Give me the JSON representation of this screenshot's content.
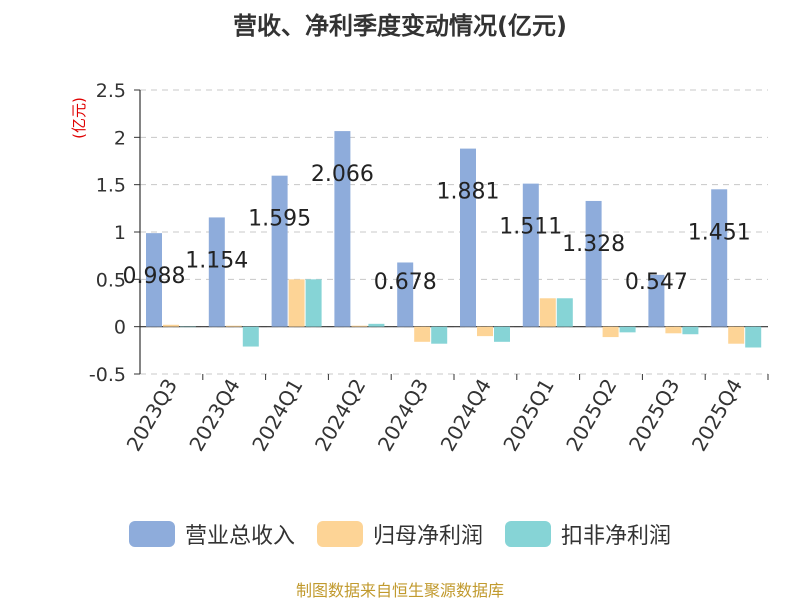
{
  "title": "营收、净利季度变动情况(亿元)",
  "source": "制图数据来自恒生聚源数据库",
  "chart_data": {
    "type": "bar",
    "title": "营收、净利季度变动情况(亿元)",
    "ylabel": "(亿元)",
    "xlabel": "",
    "ylim": [
      -0.5,
      2.5
    ],
    "yticks": [
      -0.5,
      0,
      0.5,
      1,
      1.5,
      2,
      2.5
    ],
    "ytick_labels": [
      "-0.5",
      "0",
      "0.5",
      "1",
      "1.5",
      "2",
      "2.5"
    ],
    "grid": true,
    "legend_position": "bottom",
    "categories": [
      "2023Q3",
      "2023Q4",
      "2024Q1",
      "2024Q2",
      "2024Q3",
      "2024Q4",
      "2025Q1",
      "2025Q2",
      "2025Q3",
      "2025Q4"
    ],
    "series": [
      {
        "name": "营业总收入",
        "color": "#8eacdb",
        "values": [
          0.988,
          1.154,
          1.595,
          2.066,
          0.678,
          1.881,
          1.511,
          1.328,
          0.547,
          1.451
        ]
      },
      {
        "name": "归母净利润",
        "color": "#fdd496",
        "values": [
          0.02,
          0.01,
          0.5,
          0.01,
          -0.16,
          -0.1,
          0.3,
          -0.11,
          -0.07,
          -0.18
        ]
      },
      {
        "name": "扣非净利润",
        "color": "#86d4d6",
        "values": [
          0.0,
          -0.21,
          0.5,
          0.03,
          -0.18,
          -0.16,
          0.3,
          -0.06,
          -0.08,
          -0.22
        ]
      }
    ],
    "data_labels": [
      "0.988",
      "1.154",
      "1.595",
      "2.066",
      "0.678",
      "1.881",
      "1.511",
      "1.328",
      "0.547",
      "1.451"
    ]
  }
}
